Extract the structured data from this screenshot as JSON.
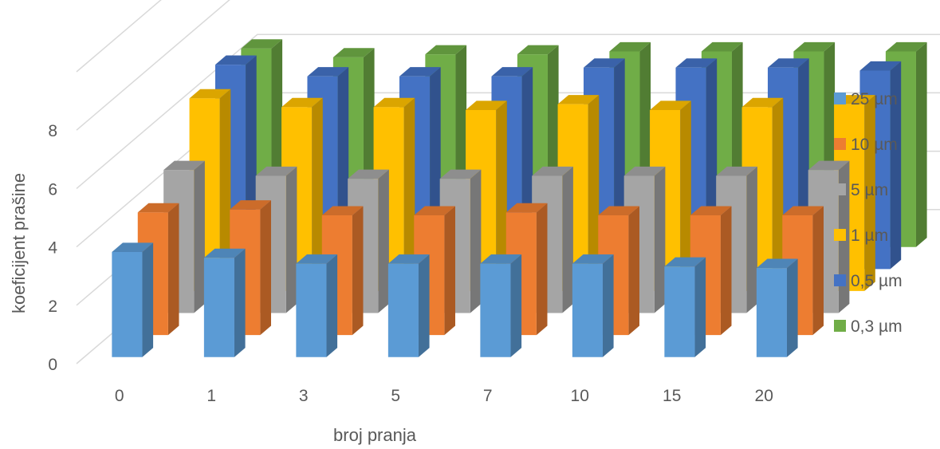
{
  "chart_data": {
    "type": "bar",
    "subtype": "3d-clustered-depth",
    "title": "",
    "xlabel": "broj pranja",
    "ylabel": "koeficijent prašine",
    "categories": [
      "0",
      "1",
      "3",
      "5",
      "7",
      "10",
      "15",
      "20"
    ],
    "ylim": [
      0,
      8
    ],
    "yticks": [
      "0",
      "2",
      "4",
      "6",
      "8"
    ],
    "grid": true,
    "legend_position": "right",
    "series": [
      {
        "name": "25 µm",
        "color": "#5b9bd5",
        "values": [
          3.6,
          3.4,
          3.2,
          3.2,
          3.2,
          3.2,
          3.1,
          3.05
        ]
      },
      {
        "name": "10 µm",
        "color": "#ed7d31",
        "values": [
          4.2,
          4.3,
          4.1,
          4.1,
          4.2,
          4.1,
          4.1,
          4.1
        ]
      },
      {
        "name": "5 µm",
        "color": "#a5a5a5",
        "values": [
          4.9,
          4.7,
          4.6,
          4.6,
          4.7,
          4.7,
          4.7,
          4.9
        ]
      },
      {
        "name": "1 µm",
        "color": "#ffc000",
        "values": [
          6.6,
          6.3,
          6.3,
          6.2,
          6.4,
          6.2,
          6.3,
          6.4
        ]
      },
      {
        "name": "0,5 µm",
        "color": "#4472c4",
        "values": [
          7.0,
          6.6,
          6.6,
          6.6,
          6.9,
          6.9,
          6.9,
          6.8
        ]
      },
      {
        "name": "0,3 µm",
        "color": "#70ad47",
        "values": [
          6.8,
          6.5,
          6.6,
          6.6,
          6.7,
          6.7,
          6.7,
          6.7
        ]
      }
    ]
  }
}
